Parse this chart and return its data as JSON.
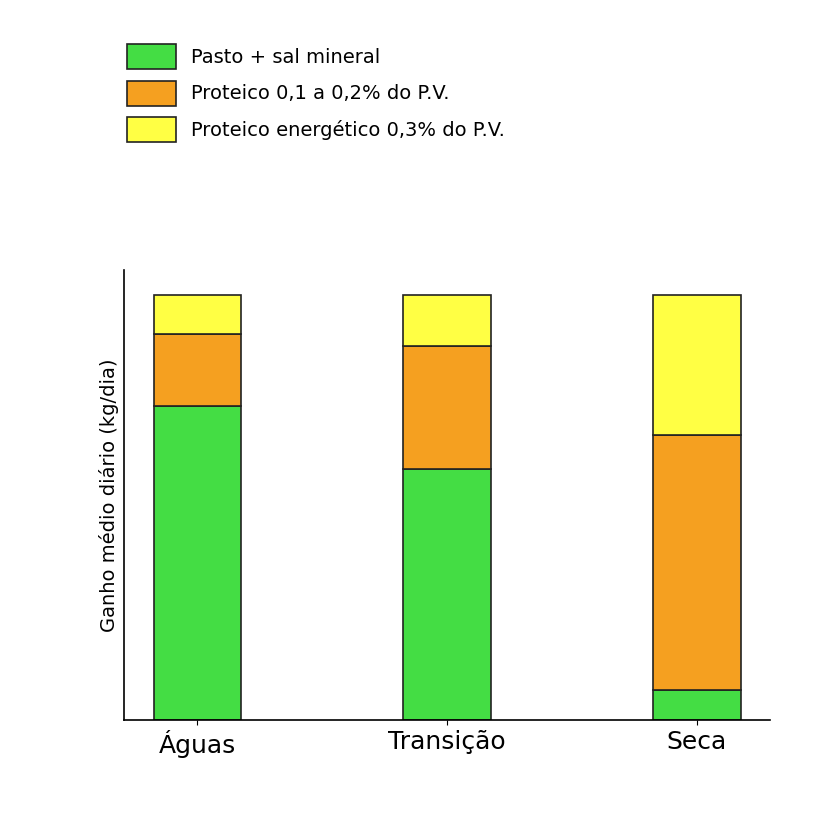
{
  "categories_display": [
    "Águas",
    "Transição",
    "Seca"
  ],
  "green_values": [
    0.74,
    0.59,
    0.07
  ],
  "orange_values": [
    0.17,
    0.29,
    0.6
  ],
  "yellow_values": [
    0.09,
    0.12,
    0.33
  ],
  "color_green": "#44dd44",
  "color_orange": "#f5a020",
  "color_yellow": "#ffff44",
  "bar_edge_color": "#222222",
  "bar_width": 0.35,
  "ylabel": "Ganho médio diário (kg/dia)",
  "legend_labels": [
    "Pasto + sal mineral",
    "Proteico 0,1 a 0,2% do P.V.",
    "Proteico energético 0,3% do P.V."
  ],
  "background_color": "#ffffff",
  "legend_fontsize": 14,
  "ylabel_fontsize": 14,
  "xtick_fontsize": 18,
  "scale": 1.0
}
